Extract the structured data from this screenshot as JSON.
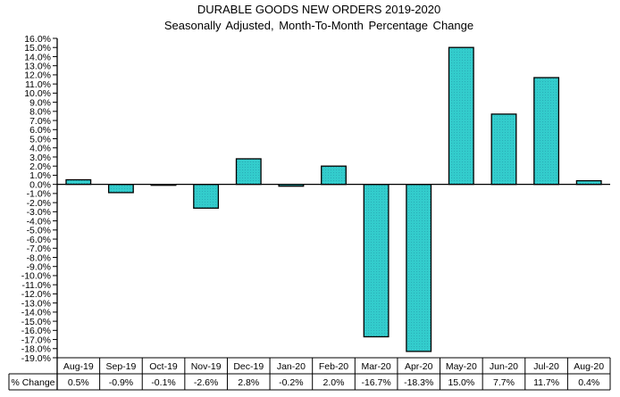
{
  "chart_data": {
    "type": "bar",
    "title": "DURABLE GOODS NEW ORDERS 2019-2020",
    "subtitle": "Seasonally Adjusted,  Month-To-Month  Percentage Change",
    "xlabel": "",
    "ylabel": "",
    "categories": [
      "Aug-19",
      "Sep-19",
      "Oct-19",
      "Nov-19",
      "Dec-19",
      "Jan-20",
      "Feb-20",
      "Mar-20",
      "Apr-20",
      "May-20",
      "Jun-20",
      "Jul-20",
      "Aug-20"
    ],
    "series": [
      {
        "name": "% Change",
        "values": [
          0.5,
          -0.9,
          -0.1,
          -2.6,
          2.8,
          -0.2,
          2.0,
          -16.7,
          -18.3,
          15.0,
          7.7,
          11.7,
          0.4
        ],
        "labels": [
          "0.5%",
          "-0.9%",
          "-0.1%",
          "-2.6%",
          "2.8%",
          "-0.2%",
          "2.0%",
          "-16.7%",
          "-18.3%",
          "15.0%",
          "7.7%",
          "11.7%",
          "0.4%"
        ],
        "color": "#33CCCC"
      }
    ],
    "ylim": [
      -19.0,
      16.0
    ],
    "ytick_step": 1.0,
    "ytick_format": "percent-1-decimal",
    "grid": false,
    "legend": "none",
    "data_table": {
      "row_header": "% Change",
      "position": "bottom"
    }
  },
  "colors": {
    "bar_fill": "#33CCCC",
    "bar_stroke": "#000000",
    "axis": "#000000"
  }
}
